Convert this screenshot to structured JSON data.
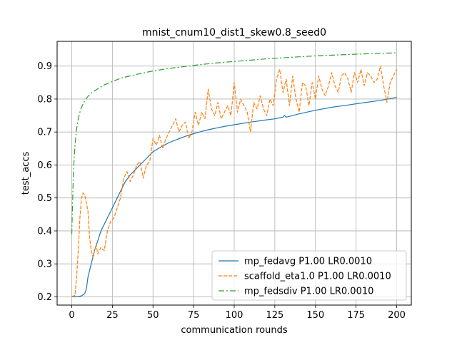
{
  "chart_data": {
    "type": "line",
    "title": "mnist_cnum10_dist1_skew0.8_seed0",
    "xlabel": "communication rounds",
    "ylabel": "test_accs",
    "xlim": [
      -9,
      209
    ],
    "ylim": [
      0.175,
      0.975
    ],
    "x_ticks": [
      0,
      25,
      50,
      75,
      100,
      125,
      150,
      175,
      200
    ],
    "x_tick_labels": [
      "0",
      "25",
      "50",
      "75",
      "100",
      "125",
      "150",
      "175",
      "200"
    ],
    "y_ticks": [
      0.2,
      0.3,
      0.4,
      0.5,
      0.6,
      0.7,
      0.8,
      0.9
    ],
    "y_tick_labels": [
      "0.2",
      "0.3",
      "0.4",
      "0.5",
      "0.6",
      "0.7",
      "0.8",
      "0.9"
    ],
    "grid": true,
    "legend_position": "bottom-right",
    "series": [
      {
        "name": "mp_fedavg P1.00 LR0.0010",
        "color": "#1f77b4",
        "dash": "solid",
        "x": [
          0,
          4,
          6,
          8,
          9,
          10,
          12,
          14,
          16,
          18,
          20,
          22,
          25,
          28,
          30,
          33,
          36,
          40,
          45,
          50,
          55,
          60,
          65,
          70,
          75,
          80,
          85,
          90,
          95,
          100,
          110,
          120,
          125,
          130,
          131,
          132,
          140,
          150,
          160,
          170,
          180,
          190,
          200
        ],
        "y": [
          0.2,
          0.201,
          0.203,
          0.21,
          0.225,
          0.26,
          0.3,
          0.34,
          0.37,
          0.4,
          0.42,
          0.44,
          0.47,
          0.5,
          0.52,
          0.55,
          0.57,
          0.59,
          0.615,
          0.64,
          0.655,
          0.668,
          0.678,
          0.687,
          0.695,
          0.702,
          0.708,
          0.713,
          0.718,
          0.722,
          0.73,
          0.737,
          0.74,
          0.745,
          0.75,
          0.745,
          0.755,
          0.766,
          0.775,
          0.782,
          0.789,
          0.796,
          0.805
        ]
      },
      {
        "name": "scaffold_eta1.0 P1.00 LR0.0010",
        "color": "#ff7f0e",
        "dash": "dashed",
        "x": [
          0,
          2,
          3,
          4,
          5,
          6,
          7,
          8,
          10,
          11,
          12,
          13,
          14,
          15,
          16,
          18,
          20,
          22,
          24,
          26,
          28,
          30,
          32,
          34,
          36,
          38,
          40,
          42,
          44,
          46,
          48,
          50,
          52,
          54,
          56,
          58,
          60,
          62,
          64,
          66,
          68,
          70,
          72,
          74,
          76,
          78,
          80,
          82,
          84,
          86,
          88,
          90,
          92,
          94,
          96,
          98,
          100,
          102,
          104,
          106,
          108,
          110,
          112,
          114,
          116,
          118,
          120,
          122,
          124,
          126,
          128,
          130,
          132,
          134,
          136,
          138,
          140,
          142,
          144,
          146,
          148,
          150,
          152,
          154,
          156,
          158,
          160,
          162,
          164,
          166,
          168,
          170,
          172,
          174,
          176,
          178,
          180,
          182,
          184,
          186,
          188,
          190,
          192,
          194,
          196,
          198,
          200
        ],
        "y": [
          0.2,
          0.205,
          0.26,
          0.34,
          0.44,
          0.5,
          0.515,
          0.51,
          0.46,
          0.38,
          0.34,
          0.32,
          0.34,
          0.36,
          0.33,
          0.35,
          0.34,
          0.4,
          0.43,
          0.44,
          0.47,
          0.5,
          0.56,
          0.58,
          0.55,
          0.57,
          0.6,
          0.61,
          0.56,
          0.6,
          0.61,
          0.68,
          0.66,
          0.69,
          0.65,
          0.68,
          0.7,
          0.72,
          0.74,
          0.7,
          0.72,
          0.73,
          0.68,
          0.7,
          0.76,
          0.72,
          0.76,
          0.74,
          0.83,
          0.77,
          0.75,
          0.79,
          0.74,
          0.76,
          0.78,
          0.75,
          0.85,
          0.76,
          0.8,
          0.78,
          0.76,
          0.7,
          0.79,
          0.77,
          0.81,
          0.77,
          0.75,
          0.8,
          0.78,
          0.86,
          0.89,
          0.82,
          0.86,
          0.78,
          0.87,
          0.8,
          0.76,
          0.85,
          0.84,
          0.78,
          0.85,
          0.8,
          0.87,
          0.83,
          0.81,
          0.84,
          0.88,
          0.84,
          0.82,
          0.87,
          0.88,
          0.86,
          0.82,
          0.88,
          0.85,
          0.89,
          0.84,
          0.88,
          0.87,
          0.85,
          0.86,
          0.9,
          0.84,
          0.79,
          0.85,
          0.87,
          0.89
        ]
      },
      {
        "name": "mp_fedsdiv P1.00 LR0.0010",
        "color": "#2ca02c",
        "dash": "dashdot",
        "x": [
          0,
          1,
          2,
          3,
          4,
          5,
          6,
          8,
          10,
          12,
          15,
          20,
          25,
          30,
          35,
          40,
          50,
          60,
          70,
          80,
          90,
          100,
          110,
          120,
          130,
          140,
          150,
          160,
          170,
          180,
          190,
          200
        ],
        "y": [
          0.39,
          0.58,
          0.66,
          0.71,
          0.74,
          0.76,
          0.775,
          0.795,
          0.808,
          0.818,
          0.828,
          0.843,
          0.853,
          0.863,
          0.869,
          0.875,
          0.885,
          0.893,
          0.899,
          0.905,
          0.91,
          0.914,
          0.918,
          0.922,
          0.925,
          0.928,
          0.931,
          0.933,
          0.935,
          0.937,
          0.939,
          0.94
        ]
      }
    ]
  }
}
